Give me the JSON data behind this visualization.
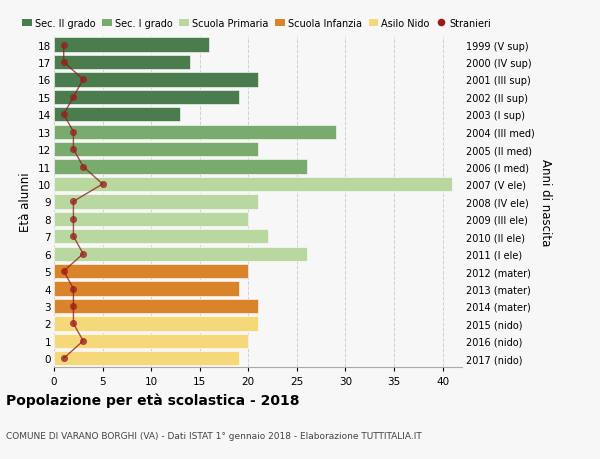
{
  "ages": [
    18,
    17,
    16,
    15,
    14,
    13,
    12,
    11,
    10,
    9,
    8,
    7,
    6,
    5,
    4,
    3,
    2,
    1,
    0
  ],
  "right_labels": [
    "1999 (V sup)",
    "2000 (IV sup)",
    "2001 (III sup)",
    "2002 (II sup)",
    "2003 (I sup)",
    "2004 (III med)",
    "2005 (II med)",
    "2006 (I med)",
    "2007 (V ele)",
    "2008 (IV ele)",
    "2009 (III ele)",
    "2010 (II ele)",
    "2011 (I ele)",
    "2012 (mater)",
    "2013 (mater)",
    "2014 (mater)",
    "2015 (nido)",
    "2016 (nido)",
    "2017 (nido)"
  ],
  "bar_values": [
    16,
    14,
    21,
    19,
    13,
    29,
    21,
    26,
    41,
    21,
    20,
    22,
    26,
    20,
    19,
    21,
    21,
    20,
    19
  ],
  "bar_colors": [
    "#4a7c4e",
    "#4a7c4e",
    "#4a7c4e",
    "#4a7c4e",
    "#4a7c4e",
    "#7aab6e",
    "#7aab6e",
    "#7aab6e",
    "#b8d8a0",
    "#b8d8a0",
    "#b8d8a0",
    "#b8d8a0",
    "#b8d8a0",
    "#d9842a",
    "#d9842a",
    "#d9842a",
    "#f5d87a",
    "#f5d87a",
    "#f5d87a"
  ],
  "stranieri_values": [
    1,
    1,
    3,
    2,
    1,
    2,
    2,
    3,
    5,
    2,
    2,
    2,
    3,
    1,
    2,
    2,
    2,
    3,
    1
  ],
  "legend_labels": [
    "Sec. II grado",
    "Sec. I grado",
    "Scuola Primaria",
    "Scuola Infanzia",
    "Asilo Nido",
    "Stranieri"
  ],
  "legend_colors": [
    "#4a7c4e",
    "#7aab6e",
    "#b8d8a0",
    "#d9842a",
    "#f5d87a",
    "#9b1c1c"
  ],
  "title": "Popolazione per età scolastica - 2018",
  "subtitle": "COMUNE DI VARANO BORGHI (VA) - Dati ISTAT 1° gennaio 2018 - Elaborazione TUTTITALIA.IT",
  "ylabel_left": "Età alunni",
  "ylabel_right": "Anni di nascita",
  "xlim": [
    0,
    42
  ],
  "xticks": [
    0,
    5,
    10,
    15,
    20,
    25,
    30,
    35,
    40
  ],
  "background_color": "#f7f7f7",
  "grid_color": "#d0d0d0",
  "bar_height": 0.82
}
